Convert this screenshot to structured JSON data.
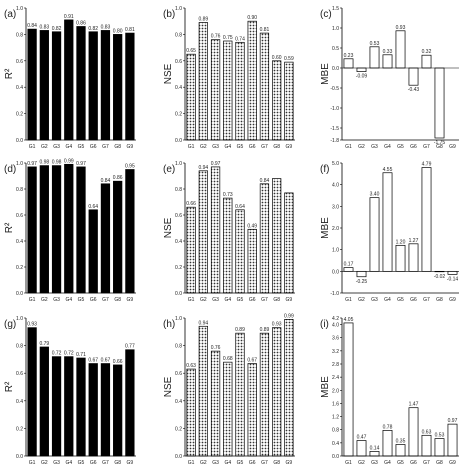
{
  "chart_data": [
    {
      "panel": "(a)",
      "type": "bar",
      "style": "solid",
      "ylabel": "R²",
      "categories": [
        "G1",
        "G2",
        "G3",
        "G4",
        "G5",
        "G6",
        "G7",
        "G8",
        "G9"
      ],
      "values": [
        0.84,
        0.83,
        0.82,
        0.91,
        0.86,
        0.82,
        0.83,
        0.8,
        0.81
      ],
      "labels": [
        "0.84",
        "0.83",
        "0.82",
        "0.91",
        "0.86",
        "0.82",
        "0.83",
        "0.80",
        "0.81"
      ],
      "ylim": [
        0,
        1.0
      ],
      "yticks": [
        "0.0",
        "0.2",
        "0.4",
        "0.6",
        "0.8",
        "1.0"
      ],
      "grid": false
    },
    {
      "panel": "(b)",
      "type": "bar",
      "style": "pattern",
      "ylabel": "NSE",
      "categories": [
        "G1",
        "G2",
        "G3",
        "G4",
        "G5",
        "G6",
        "G7",
        "G8",
        "G9"
      ],
      "values": [
        0.65,
        0.89,
        0.76,
        0.75,
        0.74,
        0.9,
        0.81,
        0.6,
        0.59
      ],
      "labels": [
        "0.65",
        "0.89",
        "0.76",
        "0.75",
        "0.74",
        "0.90",
        "0.81",
        "0.60",
        "0.59"
      ],
      "ylim": [
        0,
        1.0
      ],
      "yticks": [
        "0.0",
        "0.2",
        "0.4",
        "0.6",
        "0.8",
        "1.0"
      ],
      "grid": false
    },
    {
      "panel": "(c)",
      "type": "bar",
      "style": "hollow",
      "ylabel": "MBE",
      "categories": [
        "G1",
        "G2",
        "G3",
        "G4",
        "G5",
        "G6",
        "G7",
        "G8",
        "G9"
      ],
      "values": [
        0.23,
        -0.09,
        0.53,
        0.33,
        0.93,
        -0.43,
        0.32,
        -1.75,
        0
      ],
      "labels": [
        "0.23",
        "-0.09",
        "0.53",
        "0.33",
        "0.93",
        "-0.43",
        "0.32",
        "-1.75",
        ""
      ],
      "ylim": [
        -1.8,
        1.5
      ],
      "yticks": [
        "-1.8",
        "-1.5",
        "-1.0",
        "-0.5",
        "0.0",
        "0.5",
        "1.0",
        "1.5"
      ],
      "grid": false
    },
    {
      "panel": "(d)",
      "type": "bar",
      "style": "solid",
      "ylabel": "R²",
      "categories": [
        "G1",
        "G2",
        "G3",
        "G4",
        "G5",
        "G6",
        "G7",
        "G8",
        "G9"
      ],
      "values": [
        0.97,
        0.98,
        0.98,
        0.99,
        0.97,
        0.64,
        0.84,
        0.86,
        0.95
      ],
      "labels": [
        "0.97",
        "0.98",
        "0.98",
        "0.99",
        "0.97",
        "0.64",
        "0.84",
        "0.86",
        "0.95"
      ],
      "ylim": [
        0,
        1.0
      ],
      "yticks": [
        "0.0",
        "0.2",
        "0.4",
        "0.6",
        "0.8",
        "1.0"
      ],
      "grid": false
    },
    {
      "panel": "(e)",
      "type": "bar",
      "style": "pattern",
      "ylabel": "NSE",
      "categories": [
        "G1",
        "G2",
        "G3",
        "G4",
        "G5",
        "G6",
        "G7",
        "G8",
        "G9"
      ],
      "values": [
        0.66,
        0.94,
        0.97,
        0.73,
        0.64,
        0.49,
        0.84,
        0.88,
        0.77
      ],
      "labels": [
        "0.66",
        "0.94",
        "0.97",
        "0.73",
        "0.64",
        "0.49",
        "0.84",
        "",
        ""
      ],
      "ylim": [
        0,
        1.0
      ],
      "yticks": [
        "0.0",
        "0.2",
        "0.4",
        "0.6",
        "0.8",
        "1.0"
      ],
      "grid": false
    },
    {
      "panel": "(f)",
      "type": "bar",
      "style": "hollow",
      "ylabel": "MBE",
      "categories": [
        "G1",
        "G2",
        "G3",
        "G4",
        "G5",
        "G6",
        "G7",
        "G8",
        "G9"
      ],
      "values": [
        0.17,
        -0.25,
        3.4,
        4.55,
        1.2,
        1.27,
        4.79,
        -0.02,
        -0.14
      ],
      "labels": [
        "0.17",
        "-0.25",
        "3.40",
        "4.55",
        "1.20",
        "1.27",
        "4.79",
        "-0.02",
        "-0.14"
      ],
      "ylim": [
        -1.0,
        5.0
      ],
      "yticks": [
        "-1.0",
        "0.0",
        "1.0",
        "2.0",
        "3.0",
        "4.0",
        "5.0"
      ],
      "grid": false
    },
    {
      "panel": "(g)",
      "type": "bar",
      "style": "solid",
      "ylabel": "R²",
      "categories": [
        "G1",
        "G2",
        "G3",
        "G4",
        "G5",
        "G6",
        "G7",
        "G8",
        "G9"
      ],
      "values": [
        0.93,
        0.79,
        0.72,
        0.72,
        0.71,
        0.67,
        0.67,
        0.66,
        0.77
      ],
      "labels": [
        "0.93",
        "0.79",
        "0.72",
        "0.72",
        "0.71",
        "0.67",
        "0.67",
        "0.66",
        "0.77"
      ],
      "ylim": [
        0,
        1.0
      ],
      "yticks": [
        "0.0",
        "0.2",
        "0.4",
        "0.6",
        "0.8",
        "1.0"
      ],
      "grid": false
    },
    {
      "panel": "(h)",
      "type": "bar",
      "style": "pattern",
      "ylabel": "NSE",
      "categories": [
        "G1",
        "G2",
        "G3",
        "G4",
        "G5",
        "G6",
        "G7",
        "G8",
        "G9"
      ],
      "values": [
        0.63,
        0.94,
        0.76,
        0.68,
        0.89,
        0.67,
        0.89,
        0.93,
        0.99
      ],
      "labels": [
        "0.63",
        "0.94",
        "0.76",
        "0.68",
        "0.89",
        "0.67",
        "0.89",
        "0.93",
        "0.99"
      ],
      "ylim": [
        0,
        1.0
      ],
      "yticks": [
        "0.0",
        "0.2",
        "0.4",
        "0.6",
        "0.8",
        "1.0"
      ],
      "grid": false
    },
    {
      "panel": "(i)",
      "type": "bar",
      "style": "hollow",
      "ylabel": "MBE",
      "categories": [
        "G1",
        "G2",
        "G3",
        "G4",
        "G5",
        "G6",
        "G7",
        "G8",
        "G9"
      ],
      "values": [
        4.05,
        0.47,
        0.14,
        0.78,
        0.35,
        1.47,
        0.63,
        0.53,
        0.97
      ],
      "labels": [
        "4.05",
        "0.47",
        "0.14",
        "0.78",
        "0.35",
        "1.47",
        "0.63",
        "0.53",
        "0.97"
      ],
      "ylim": [
        0,
        4.2
      ],
      "yticks": [
        "0.0",
        "0.4",
        "0.8",
        "1.2",
        "1.6",
        "2.0",
        "2.4",
        "2.8",
        "3.2",
        "3.6",
        "4.0",
        "4.2"
      ],
      "grid": false
    }
  ]
}
